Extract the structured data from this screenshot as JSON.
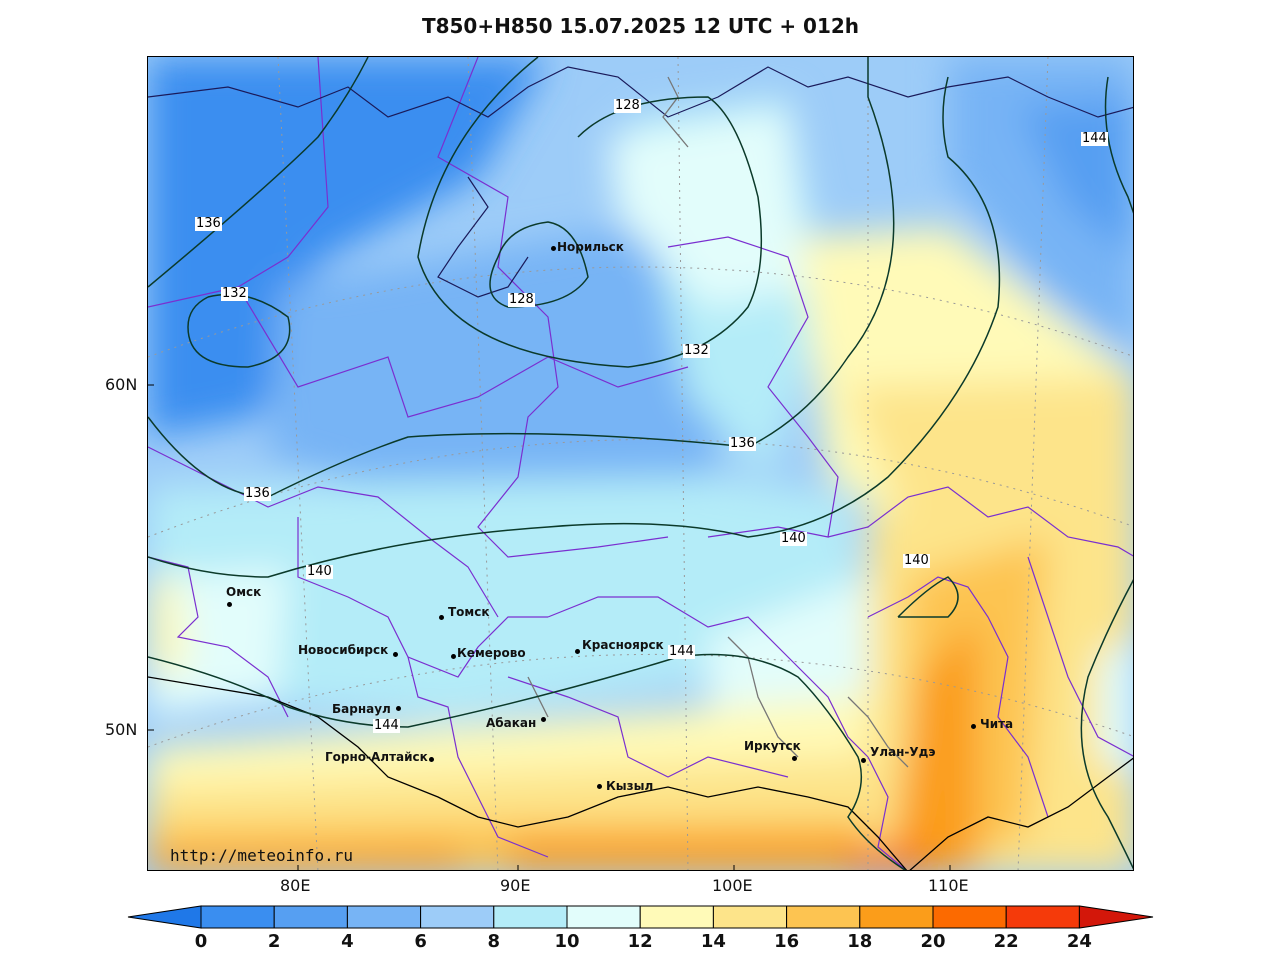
{
  "title": "T850+H850 15.07.2025 12 UTC + 012h",
  "watermark": "http://meteoinfo.ru",
  "latitude_labels": [
    "60N",
    "50N"
  ],
  "longitude_labels": [
    "80E",
    "90E",
    "100E",
    "110E"
  ],
  "cities": [
    {
      "name": "Норильск"
    },
    {
      "name": "Омск"
    },
    {
      "name": "Томск"
    },
    {
      "name": "Новосибирск"
    },
    {
      "name": "Кемерово"
    },
    {
      "name": "Красноярск"
    },
    {
      "name": "Барнаул"
    },
    {
      "name": "Абакан"
    },
    {
      "name": "Горно-Алтайск"
    },
    {
      "name": "Кызыл"
    },
    {
      "name": "Иркутск"
    },
    {
      "name": "Улан-Удэ"
    },
    {
      "name": "Чита"
    }
  ],
  "contour_labels": [
    "128",
    "128",
    "132",
    "132",
    "136",
    "136",
    "136",
    "140",
    "140",
    "140",
    "144",
    "144",
    "144"
  ],
  "colorbar": {
    "ticks": [
      "0",
      "2",
      "4",
      "6",
      "8",
      "10",
      "12",
      "14",
      "16",
      "18",
      "20",
      "22",
      "24"
    ],
    "colors": [
      "#1f78e8",
      "#3a8ef0",
      "#569ff2",
      "#77b4f5",
      "#9dccf8",
      "#b4ecf8",
      "#e2fdfb",
      "#fffab8",
      "#fde48a",
      "#fdc451",
      "#fb9d1a",
      "#fc6a00",
      "#f53a0a",
      "#d3170a"
    ]
  }
}
